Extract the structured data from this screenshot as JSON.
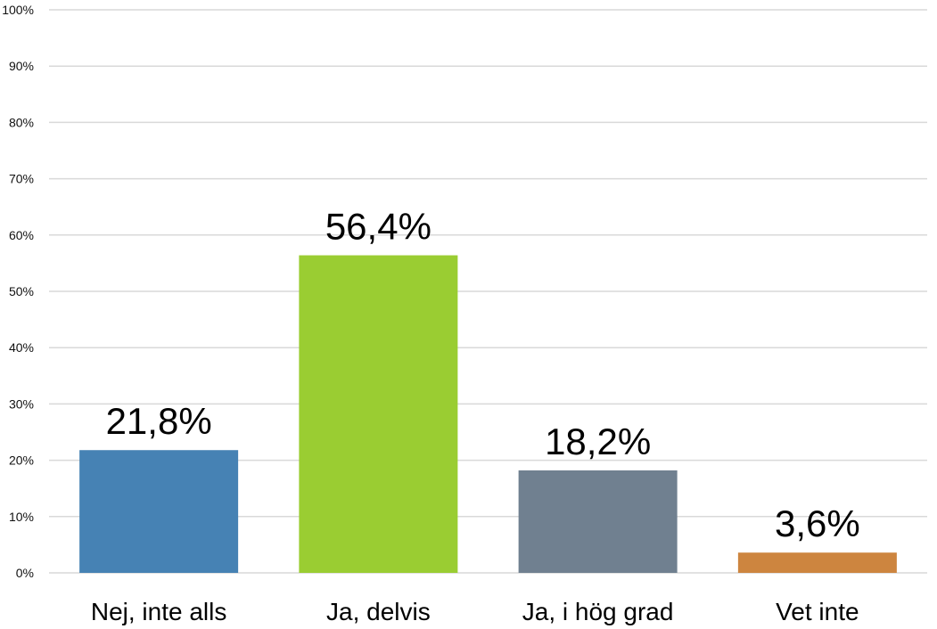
{
  "chart_data": {
    "type": "bar",
    "categories": [
      "Nej, inte alls",
      "Ja, delvis",
      "Ja, i hög grad",
      "Vet inte"
    ],
    "values": [
      21.8,
      56.4,
      18.2,
      3.6
    ],
    "data_labels": [
      "21,8%",
      "56,4%",
      "18,2%",
      "3,6%"
    ],
    "colors": [
      "#4682b4",
      "#9acd32",
      "#708090",
      "#cd853f"
    ],
    "ylim": [
      0,
      100
    ],
    "yticks": [
      0,
      10,
      20,
      30,
      40,
      50,
      60,
      70,
      80,
      90,
      100
    ],
    "ytick_labels": [
      "0%",
      "10%",
      "20%",
      "30%",
      "40%",
      "50%",
      "60%",
      "70%",
      "80%",
      "90%",
      "100%"
    ],
    "grid": true,
    "legend": "none"
  }
}
